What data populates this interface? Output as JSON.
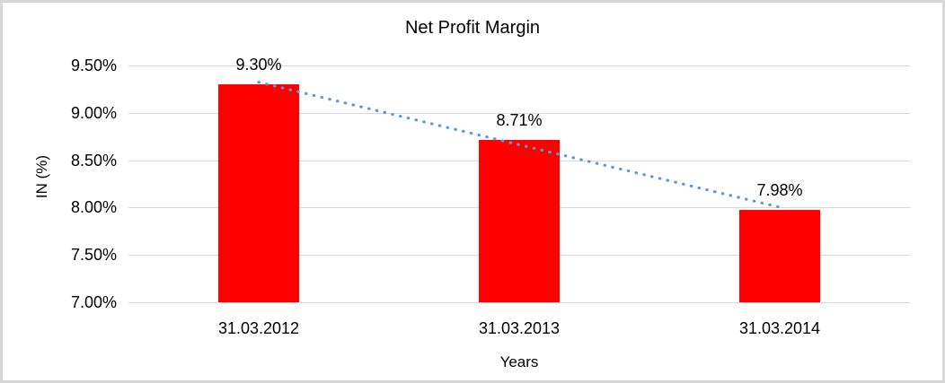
{
  "chart_data": {
    "type": "bar",
    "title": "Net Profit Margin",
    "xlabel": "Years",
    "ylabel": "IN (%)",
    "categories": [
      "31.03.2012",
      "31.03.2013",
      "31.03.2014"
    ],
    "values": [
      9.3,
      8.71,
      7.98
    ],
    "data_labels": [
      "9.30%",
      "8.71%",
      "7.98%"
    ],
    "ylim": [
      7.0,
      9.5
    ],
    "yticks": [
      {
        "value": 9.5,
        "label": "9.50%"
      },
      {
        "value": 9.0,
        "label": "9.00%"
      },
      {
        "value": 8.5,
        "label": "8.50%"
      },
      {
        "value": 8.0,
        "label": "8.00%"
      },
      {
        "value": 7.5,
        "label": "7.50%"
      },
      {
        "value": 7.0,
        "label": "7.00%"
      }
    ],
    "grid": true,
    "legend": false,
    "trendline": {
      "type": "linear",
      "style": "dotted"
    },
    "colors": {
      "bar": "#FF0000",
      "trendline": "#5B9BD5",
      "gridline": "#D9D9D9",
      "text": "#000000",
      "background": "#FFFFFF",
      "frame_border": "#D6D6D6"
    }
  }
}
